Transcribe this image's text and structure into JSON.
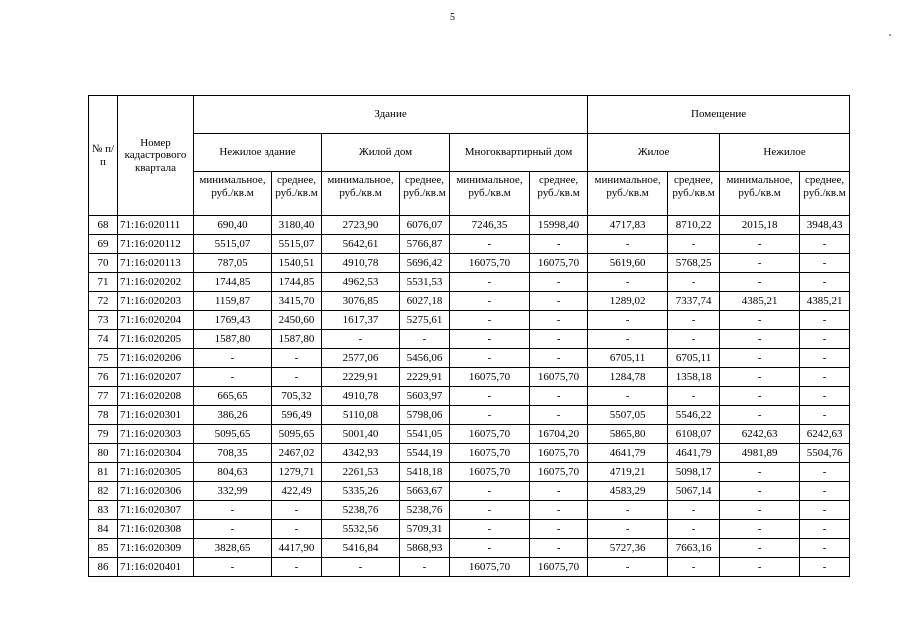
{
  "page": {
    "number": "5"
  },
  "table": {
    "header": {
      "col_num": "№ п/п",
      "col_cadastral": "Номер кадастрового квартала",
      "group_building": "Здание",
      "group_premises": "Помещение",
      "sub_nonres_building": "Нежилое здание",
      "sub_res_house": "Жилой дом",
      "sub_apartment": "Многоквартирный дом",
      "sub_residential": "Жилое",
      "sub_nonresidential": "Нежилое",
      "min_label": "минимальное, руб./кв.м",
      "avg_label": "среднее, руб./кв.м"
    },
    "rows": [
      {
        "num": "68",
        "cadastral": "71:16:020111",
        "values": [
          "690,40",
          "3180,40",
          "2723,90",
          "6076,07",
          "7246,35",
          "15998,40",
          "4717,83",
          "8710,22",
          "2015,18",
          "3948,43"
        ]
      },
      {
        "num": "69",
        "cadastral": "71:16:020112",
        "values": [
          "5515,07",
          "5515,07",
          "5642,61",
          "5766,87",
          "-",
          "-",
          "-",
          "-",
          "-",
          "-"
        ]
      },
      {
        "num": "70",
        "cadastral": "71:16:020113",
        "values": [
          "787,05",
          "1540,51",
          "4910,78",
          "5696,42",
          "16075,70",
          "16075,70",
          "5619,60",
          "5768,25",
          "-",
          "-"
        ]
      },
      {
        "num": "71",
        "cadastral": "71:16:020202",
        "values": [
          "1744,85",
          "1744,85",
          "4962,53",
          "5531,53",
          "-",
          "-",
          "-",
          "-",
          "-",
          "-"
        ]
      },
      {
        "num": "72",
        "cadastral": "71:16:020203",
        "values": [
          "1159,87",
          "3415,70",
          "3076,85",
          "6027,18",
          "-",
          "-",
          "1289,02",
          "7337,74",
          "4385,21",
          "4385,21"
        ]
      },
      {
        "num": "73",
        "cadastral": "71:16:020204",
        "values": [
          "1769,43",
          "2450,60",
          "1617,37",
          "5275,61",
          "-",
          "-",
          "-",
          "-",
          "-",
          "-"
        ]
      },
      {
        "num": "74",
        "cadastral": "71:16:020205",
        "values": [
          "1587,80",
          "1587,80",
          "-",
          "-",
          "-",
          "-",
          "-",
          "-",
          "-",
          "-"
        ]
      },
      {
        "num": "75",
        "cadastral": "71:16:020206",
        "values": [
          "-",
          "-",
          "2577,06",
          "5456,06",
          "-",
          "-",
          "6705,11",
          "6705,11",
          "-",
          "-"
        ]
      },
      {
        "num": "76",
        "cadastral": "71:16:020207",
        "values": [
          "-",
          "-",
          "2229,91",
          "2229,91",
          "16075,70",
          "16075,70",
          "1284,78",
          "1358,18",
          "-",
          "-"
        ]
      },
      {
        "num": "77",
        "cadastral": "71:16:020208",
        "values": [
          "665,65",
          "705,32",
          "4910,78",
          "5603,97",
          "-",
          "-",
          "-",
          "-",
          "-",
          "-"
        ]
      },
      {
        "num": "78",
        "cadastral": "71:16:020301",
        "values": [
          "386,26",
          "596,49",
          "5110,08",
          "5798,06",
          "-",
          "-",
          "5507,05",
          "5546,22",
          "-",
          "-"
        ]
      },
      {
        "num": "79",
        "cadastral": "71:16:020303",
        "values": [
          "5095,65",
          "5095,65",
          "5001,40",
          "5541,05",
          "16075,70",
          "16704,20",
          "5865,80",
          "6108,07",
          "6242,63",
          "6242,63"
        ]
      },
      {
        "num": "80",
        "cadastral": "71:16:020304",
        "values": [
          "708,35",
          "2467,02",
          "4342,93",
          "5544,19",
          "16075,70",
          "16075,70",
          "4641,79",
          "4641,79",
          "4981,89",
          "5504,76"
        ]
      },
      {
        "num": "81",
        "cadastral": "71:16:020305",
        "values": [
          "804,63",
          "1279,71",
          "2261,53",
          "5418,18",
          "16075,70",
          "16075,70",
          "4719,21",
          "5098,17",
          "-",
          "-"
        ]
      },
      {
        "num": "82",
        "cadastral": "71:16:020306",
        "values": [
          "332,99",
          "422,49",
          "5335,26",
          "5663,67",
          "-",
          "-",
          "4583,29",
          "5067,14",
          "-",
          "-"
        ]
      },
      {
        "num": "83",
        "cadastral": "71:16:020307",
        "values": [
          "-",
          "-",
          "5238,76",
          "5238,76",
          "-",
          "-",
          "-",
          "-",
          "-",
          "-"
        ]
      },
      {
        "num": "84",
        "cadastral": "71:16:020308",
        "values": [
          "-",
          "-",
          "5532,56",
          "5709,31",
          "-",
          "-",
          "-",
          "-",
          "-",
          "-"
        ]
      },
      {
        "num": "85",
        "cadastral": "71:16:020309",
        "values": [
          "3828,65",
          "4417,90",
          "5416,84",
          "5868,93",
          "-",
          "-",
          "5727,36",
          "7663,16",
          "-",
          "-"
        ]
      },
      {
        "num": "86",
        "cadastral": "71:16:020401",
        "values": [
          "-",
          "-",
          "-",
          "-",
          "16075,70",
          "16075,70",
          "-",
          "-",
          "-",
          "-"
        ]
      }
    ]
  }
}
